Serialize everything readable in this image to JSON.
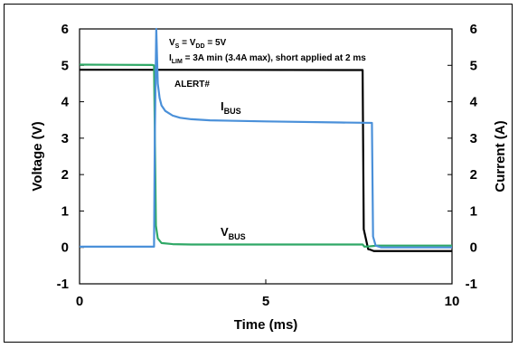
{
  "chart_data": {
    "type": "line",
    "xlabel": "Time (ms)",
    "ylabel_left": "Voltage (V)",
    "ylabel_right": "Current (A)",
    "xlim": [
      0,
      10
    ],
    "ylim_left": [
      -1,
      6
    ],
    "ylim_right": [
      -1,
      6
    ],
    "x_ticks": [
      "0",
      "5",
      "10"
    ],
    "y_ticks_left": [
      "-1",
      "0",
      "1",
      "2",
      "3",
      "4",
      "5",
      "6"
    ],
    "y_ticks_right": [
      "-1",
      "0",
      "1",
      "2",
      "3",
      "4",
      "5",
      "6"
    ],
    "grid": false,
    "annotations": {
      "line1": {
        "v": "V",
        "v_sub": "S",
        "mid": " = V",
        "mid_sub": "DD",
        "end": " = 5V"
      },
      "line2": {
        "i": "I",
        "i_sub": "LIM",
        "rest": " = 3A min (3.4A max), short applied at 2 ms"
      },
      "alert": "ALERT#",
      "ibus": {
        "main": "I",
        "sub": "BUS"
      },
      "vbus": {
        "main": "V",
        "sub": "BUS"
      }
    },
    "series": [
      {
        "name": "ALERT#",
        "color": "#000000",
        "x": [
          0,
          7.6,
          7.63,
          7.75,
          7.8,
          7.9,
          8.5,
          10
        ],
        "y": [
          4.88,
          4.87,
          0.5,
          -0.05,
          -0.06,
          -0.1,
          -0.1,
          -0.1
        ]
      },
      {
        "name": "VBUS",
        "color": "#2fa866",
        "x": [
          0,
          1.95,
          2.0,
          2.05,
          2.1,
          2.2,
          2.5,
          3,
          5,
          7.6,
          7.65,
          7.8,
          8.0,
          10
        ],
        "y": [
          5.02,
          5.01,
          5.0,
          0.6,
          0.25,
          0.12,
          0.09,
          0.08,
          0.08,
          0.08,
          0.02,
          0.03,
          0.05,
          0.05
        ]
      },
      {
        "name": "IBUS",
        "color": "#4a90d9",
        "x": [
          0,
          2.0,
          2.02,
          2.06,
          2.1,
          2.15,
          2.2,
          2.3,
          2.5,
          2.7,
          3.0,
          3.5,
          5,
          7.0,
          7.85,
          7.88,
          7.95,
          8.1,
          10
        ],
        "y": [
          0.02,
          0.02,
          3.0,
          6.0,
          4.5,
          4.1,
          3.9,
          3.75,
          3.62,
          3.56,
          3.52,
          3.49,
          3.46,
          3.43,
          3.42,
          0.3,
          0.05,
          0.0,
          0.0
        ]
      }
    ]
  }
}
